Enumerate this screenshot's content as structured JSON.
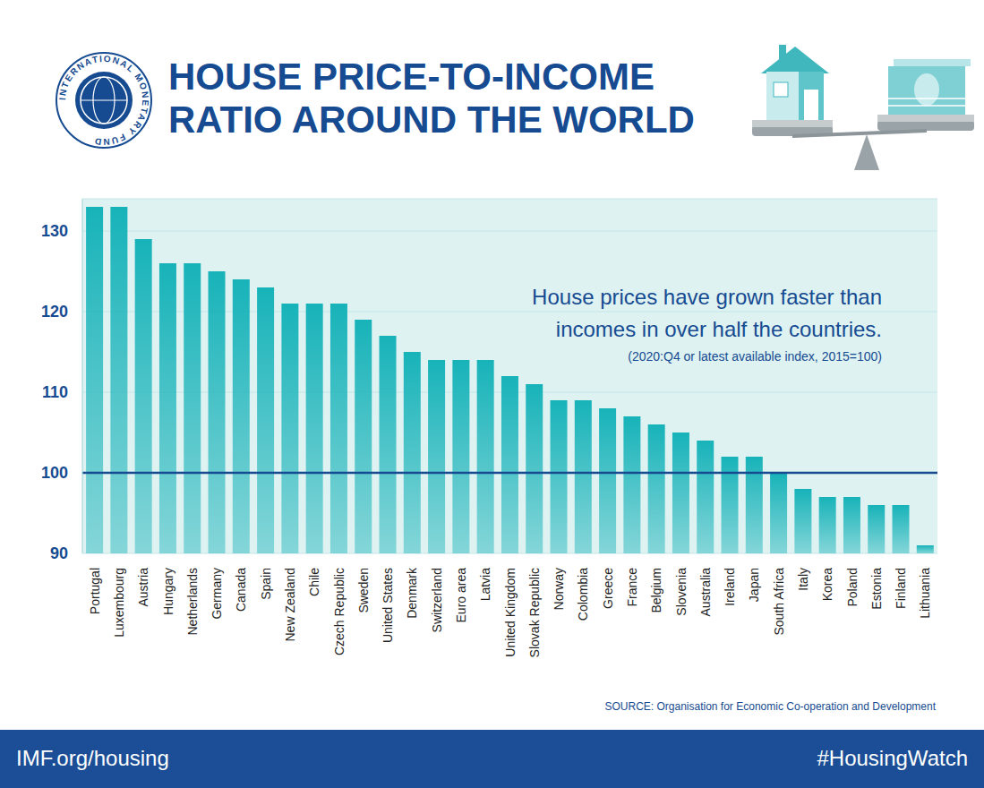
{
  "chart_data": {
    "type": "bar",
    "title": [
      "HOUSE PRICE-TO-INCOME",
      "RATIO AROUND THE WORLD"
    ],
    "logo_text": "INTERNATIONAL MONETARY FUND",
    "annotation": [
      "House prices have grown faster than",
      "incomes in over half the countries."
    ],
    "note": "(2020:Q4 or latest available index, 2015=100)",
    "source": "SOURCE: Organisation for Economic Co-operation and Development",
    "footer_left": "IMF.org/housing",
    "footer_right": "#HousingWatch",
    "categories": [
      "Portugal",
      "Luxembourg",
      "Austria",
      "Hungary",
      "Netherlands",
      "Germany",
      "Canada",
      "Spain",
      "New Zealand",
      "Chile",
      "Czech Republic",
      "Sweden",
      "United States",
      "Denmark",
      "Switzerland",
      "Euro area",
      "Latvia",
      "United Kingdom",
      "Slovak Republic",
      "Norway",
      "Colombia",
      "Greece",
      "France",
      "Belgium",
      "Slovenia",
      "Australia",
      "Ireland",
      "Japan",
      "South Africa",
      "Italy",
      "Korea",
      "Poland",
      "Estonia",
      "Finland",
      "Lithuania"
    ],
    "values": [
      133,
      133,
      129,
      126,
      126,
      125,
      124,
      123,
      121,
      121,
      121,
      119,
      117,
      115,
      114,
      114,
      114,
      112,
      111,
      109,
      109,
      108,
      107,
      106,
      105,
      104,
      102,
      102,
      100,
      98,
      97,
      97,
      96,
      96,
      91
    ],
    "color": "#17b3b9",
    "ylim": [
      90,
      134
    ],
    "yticks": [
      90,
      100,
      110,
      120,
      130
    ],
    "grid": true,
    "reference_line": 100
  }
}
